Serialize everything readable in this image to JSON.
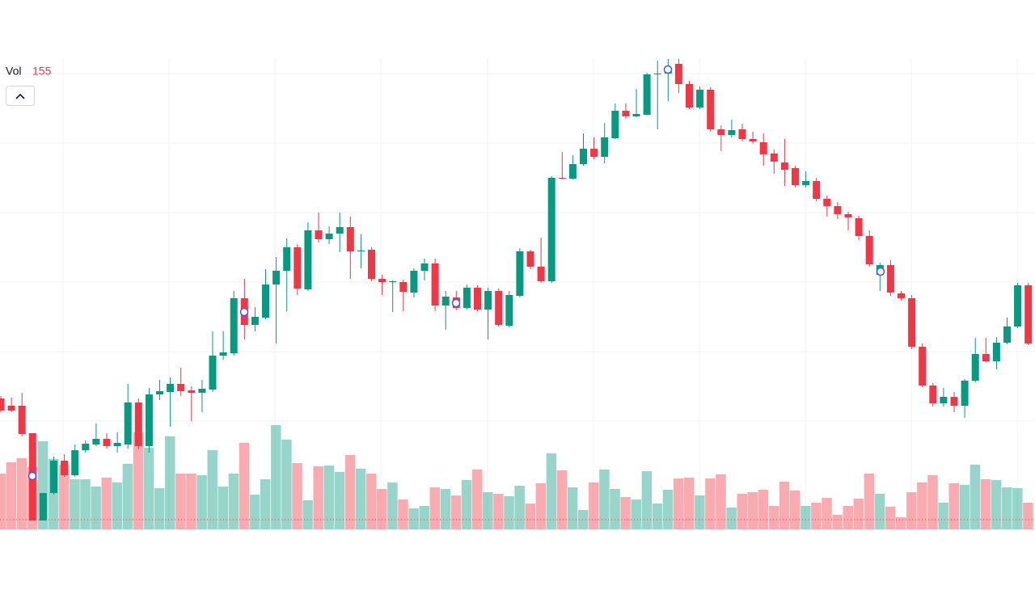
{
  "chart_data": {
    "type": "candlestick",
    "legend_label": "Vol",
    "up_color": "#089981",
    "down_color": "#f23645",
    "volume_opacity": 0.42,
    "ylim": [
      0,
      700
    ],
    "volume_ylim": [
      0,
      3000
    ],
    "open": [
      207,
      198,
      198,
      164,
      56,
      90,
      130,
      112,
      143,
      150,
      157,
      148,
      150,
      202,
      148,
      212,
      215,
      225,
      217,
      214,
      218,
      260,
      263,
      331,
      298,
      307,
      348,
      365,
      394,
      342,
      415,
      404,
      411,
      419,
      389,
      391,
      355,
      351,
      351,
      338,
      365,
      374,
      322,
      332,
      319,
      344,
      317,
      340,
      297,
      334,
      389,
      370,
      352,
      480,
      479,
      497,
      516,
      506,
      529,
      563,
      556,
      558,
      608,
      609,
      621,
      596,
      567,
      589,
      540,
      533,
      540,
      528,
      524,
      510,
      499,
      492,
      471,
      476,
      454,
      445,
      435,
      430,
      408,
      360,
      372,
      337,
      331,
      271,
      223,
      201,
      209,
      198,
      229,
      262,
      253,
      276,
      296,
      347
    ],
    "high": [
      210,
      208,
      214,
      164,
      90,
      135,
      138,
      150,
      155,
      176,
      164,
      165,
      225,
      207,
      220,
      230,
      233,
      245,
      222,
      230,
      290,
      290,
      340,
      355,
      320,
      367,
      382,
      405,
      398,
      425,
      437,
      420,
      437,
      432,
      410,
      394,
      360,
      353,
      354,
      368,
      380,
      380,
      340,
      340,
      348,
      347,
      344,
      343,
      340,
      393,
      391,
      406,
      482,
      512,
      508,
      535,
      530,
      548,
      572,
      572,
      590,
      610,
      625,
      627,
      627,
      600,
      593,
      592,
      545,
      552,
      547,
      537,
      535,
      515,
      528,
      495,
      488,
      480,
      458,
      450,
      438,
      433,
      415,
      375,
      378,
      340,
      335,
      275,
      226,
      220,
      215,
      231,
      282,
      282,
      283,
      307,
      350,
      350
    ],
    "low": [
      190,
      190,
      160,
      56,
      56,
      88,
      110,
      110,
      140,
      148,
      145,
      140,
      145,
      144,
      140,
      205,
      172,
      210,
      179,
      190,
      215,
      255,
      260,
      280,
      290,
      305,
      275,
      315,
      335,
      340,
      400,
      398,
      388,
      355,
      368,
      352,
      335,
      314,
      315,
      332,
      353,
      315,
      292,
      316,
      317,
      315,
      280,
      296,
      295,
      332,
      367,
      350,
      350,
      478,
      478,
      495,
      503,
      498,
      528,
      553,
      555,
      557,
      540,
      575,
      585,
      565,
      565,
      537,
      513,
      530,
      525,
      522,
      495,
      485,
      470,
      468,
      468,
      451,
      432,
      429,
      415,
      403,
      370,
      340,
      334,
      328,
      268,
      221,
      197,
      197,
      190,
      183,
      227,
      252,
      243,
      274,
      294,
      273
    ],
    "close": [
      192,
      192,
      163,
      56,
      90,
      130,
      112,
      143,
      151,
      157,
      148,
      152,
      202,
      148,
      212,
      216,
      225,
      216,
      214,
      219,
      260,
      264,
      331,
      298,
      308,
      348,
      365,
      394,
      343,
      415,
      404,
      411,
      419,
      389,
      390,
      355,
      351,
      352,
      339,
      365,
      374,
      322,
      333,
      319,
      344,
      317,
      340,
      298,
      335,
      389,
      370,
      352,
      480,
      479,
      497,
      516,
      506,
      530,
      563,
      556,
      559,
      608,
      609,
      616,
      596,
      567,
      589,
      540,
      533,
      539,
      528,
      525,
      509,
      500,
      490,
      471,
      476,
      454,
      445,
      435,
      431,
      408,
      373,
      372,
      338,
      331,
      271,
      223,
      201,
      209,
      198,
      229,
      262,
      253,
      276,
      296,
      347,
      275
    ],
    "volume": [
      324,
      390,
      414,
      362,
      512,
      409,
      376,
      291,
      291,
      249,
      301,
      273,
      381,
      564,
      475,
      240,
      541,
      324,
      324,
      315,
      461,
      249,
      324,
      503,
      202,
      291,
      606,
      522,
      385,
      169,
      367,
      371,
      334,
      432,
      353,
      324,
      235,
      273,
      174,
      122,
      136,
      244,
      235,
      197,
      287,
      348,
      216,
      207,
      193,
      254,
      150,
      268,
      442,
      343,
      244,
      113,
      273,
      348,
      235,
      188,
      174,
      338,
      150,
      230,
      296,
      301,
      197,
      296,
      320,
      127,
      207,
      216,
      230,
      136,
      277,
      226,
      136,
      155,
      183,
      85,
      136,
      179,
      324,
      207,
      132,
      71,
      216,
      273,
      315,
      155,
      268,
      259,
      376,
      291,
      287,
      244,
      240,
      155
    ]
  }
}
